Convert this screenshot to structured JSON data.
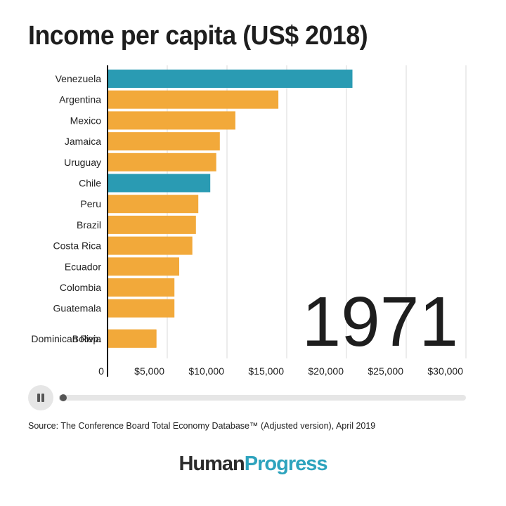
{
  "title": "Income per capita (US$ 2018)",
  "year": "1971",
  "source": "Source: The Conference Board Total Economy Database™ (Adjusted version), April 2019",
  "logo": {
    "part1": "Human",
    "part2": "Progress"
  },
  "colors": {
    "highlight": "#2a9bb3",
    "default": "#f2a93a",
    "axis": "#111111",
    "grid": "#d9d9d9"
  },
  "player": {
    "state": "paused-control",
    "progress": 0.01
  },
  "chart_data": {
    "type": "bar",
    "orientation": "horizontal",
    "categories": [
      "Venezuela",
      "Argentina",
      "Mexico",
      "Jamaica",
      "Uruguay",
      "Chile",
      "Peru",
      "Brazil",
      "Costa Rica",
      "Ecuador",
      "Colombia",
      "Guatemala",
      "Dominican Rep.",
      "Bolivia"
    ],
    "values": [
      20500,
      14300,
      10700,
      9400,
      9100,
      8600,
      7600,
      7400,
      7100,
      6000,
      5600,
      5600,
      4100,
      4050
    ],
    "highlighted": [
      "Venezuela",
      "Chile"
    ],
    "xlim": [
      0,
      30000
    ],
    "xticks": [
      "0",
      "$5,000",
      "$10,000",
      "$15,000",
      "$20,000",
      "$25,000",
      "$30,000"
    ],
    "grid": true
  }
}
